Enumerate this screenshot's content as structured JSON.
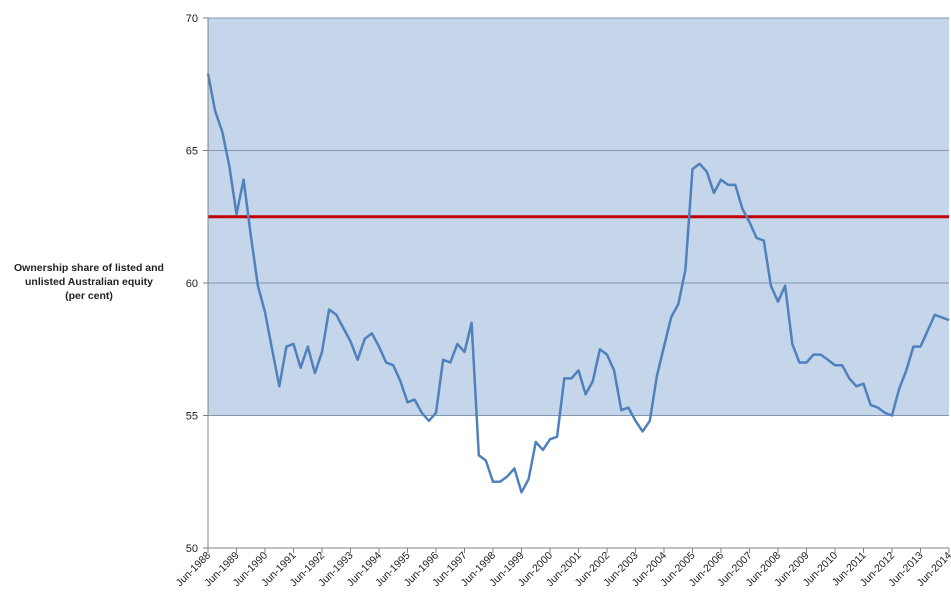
{
  "chart_data": {
    "type": "line",
    "title": "",
    "ylabel_lines": [
      "Ownership share of listed and",
      "unlisted Australian equity",
      "(per cent)"
    ],
    "xlabel": "",
    "ylim": [
      50,
      70
    ],
    "y_ticks": [
      50,
      55,
      60,
      65,
      70
    ],
    "x_tick_labels": [
      "Jun-1988",
      "Jun-1989",
      "Jun-1990",
      "Jun-1991",
      "Jun-1992",
      "Jun-1993",
      "Jun-1994",
      "Jun-1995",
      "Jun-1996",
      "Jun-1997",
      "Jun-1998",
      "Jun-1999",
      "Jun-2000",
      "Jun-2001",
      "Jun-2002",
      "Jun-2003",
      "Jun-2004",
      "Jun-2005",
      "Jun-2006",
      "Jun-2007",
      "Jun-2008",
      "Jun-2009",
      "Jun-2010",
      "Jun-2011",
      "Jun-2012",
      "Jun-2013",
      "Jun-2014"
    ],
    "shaded_band": {
      "from": 55,
      "to": 70,
      "color": "#c5d5ea"
    },
    "reference_line": {
      "value": 62.5,
      "color": "#c00000"
    },
    "grid": "horizontal",
    "line_color": "#4f81bd",
    "series": [
      {
        "values": [
          67.9,
          66.5,
          65.7,
          64.4,
          62.6,
          63.9,
          61.8,
          59.9,
          58.9,
          57.5,
          56.1,
          57.6,
          57.7,
          56.8,
          57.6,
          56.6,
          57.4,
          59.0,
          58.8,
          58.3,
          57.8,
          57.1,
          57.9,
          58.1,
          57.6,
          57.0,
          56.9,
          56.3,
          55.5,
          55.6,
          55.1,
          54.8,
          55.1,
          57.1,
          57.0,
          57.7,
          57.4,
          58.5,
          53.5,
          53.3,
          52.5,
          52.5,
          52.7,
          53.0,
          52.1,
          52.6,
          54.0,
          53.7,
          54.1,
          54.2,
          56.4,
          56.4,
          56.7,
          55.8,
          56.3,
          57.5,
          57.3,
          56.7,
          55.2,
          55.3,
          54.8,
          54.4,
          54.8,
          56.5,
          57.6,
          58.7,
          59.2,
          60.5,
          64.3,
          64.5,
          64.2,
          63.4,
          63.9,
          63.7,
          63.7,
          62.8,
          62.3,
          61.7,
          61.6,
          59.9,
          59.3,
          59.9,
          57.7,
          57.0,
          57.0,
          57.3,
          57.3,
          57.1,
          56.9,
          56.9,
          56.4,
          56.1,
          56.2,
          55.4,
          55.3,
          55.1,
          55.0,
          56.0,
          56.7,
          57.6,
          57.6,
          58.2,
          58.8,
          58.7,
          58.6
        ]
      }
    ]
  }
}
